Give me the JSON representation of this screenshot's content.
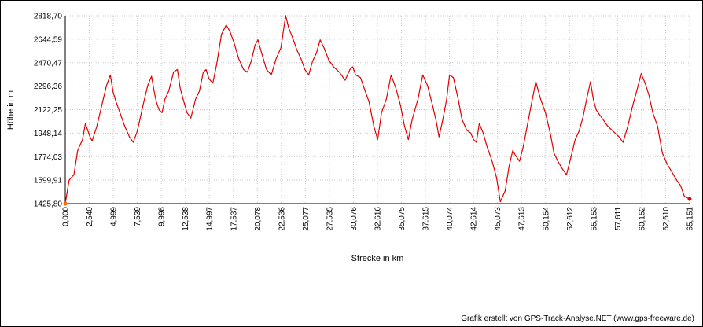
{
  "credit": "Grafik erstellt von GPS-Track-Analyse.NET (www.gps-freeware.de)",
  "colors": {
    "line": "#e00000",
    "grid": "#c8c8c8",
    "axis": "#000000",
    "start_marker": "#ff6600"
  },
  "chart_data": {
    "type": "line",
    "title": "",
    "xlabel": "Strecke  in  km",
    "ylabel": "Höhe  in  m",
    "xlim": [
      0,
      65.151
    ],
    "ylim": [
      1425.8,
      2818.7
    ],
    "grid": true,
    "x_ticks": [
      "0,000",
      "2,540",
      "4,999",
      "7,539",
      "9,998",
      "12,538",
      "14,997",
      "17,537",
      "20,078",
      "22,536",
      "25,077",
      "27,535",
      "30,076",
      "32,616",
      "35,075",
      "37,615",
      "40,074",
      "42,614",
      "45,073",
      "47,613",
      "50,154",
      "52,612",
      "55,153",
      "57,611",
      "60,152",
      "62,610",
      "65,151"
    ],
    "y_ticks": [
      "2818,70",
      "2644,59",
      "2470,47",
      "2296,36",
      "2122,25",
      "1948,14",
      "1774,03",
      "1599,91",
      "1425,80"
    ],
    "series": [
      {
        "name": "",
        "x": [
          0,
          0.4,
          0.9,
          1.3,
          1.8,
          2.1,
          2.5,
          2.8,
          3.3,
          3.8,
          4.3,
          4.7,
          5.0,
          5.3,
          5.7,
          6.2,
          6.7,
          7.1,
          7.5,
          7.7,
          8.1,
          8.6,
          9.0,
          9.3,
          9.5,
          9.8,
          10.1,
          10.4,
          10.8,
          11.3,
          11.7,
          12.0,
          12.3,
          12.7,
          13.1,
          13.6,
          14.0,
          14.4,
          14.7,
          15.0,
          15.4,
          15.8,
          16.3,
          16.8,
          17.2,
          17.6,
          18.1,
          18.6,
          19.0,
          19.4,
          19.8,
          20.1,
          20.5,
          21.0,
          21.5,
          22.0,
          22.5,
          23.0,
          23.3,
          23.7,
          24.2,
          24.6,
          25.0,
          25.4,
          25.8,
          26.2,
          26.6,
          27.0,
          27.5,
          28.0,
          28.6,
          29.2,
          29.7,
          30.0,
          30.3,
          30.8,
          31.2,
          31.7,
          32.2,
          32.6,
          33.0,
          33.5,
          34.0,
          34.5,
          35.0,
          35.4,
          35.8,
          36.2,
          36.8,
          37.3,
          37.8,
          38.3,
          38.7,
          39.0,
          39.4,
          39.8,
          40.1,
          40.5,
          41.0,
          41.4,
          41.9,
          42.3,
          42.6,
          42.9,
          43.2,
          43.6,
          44.0,
          44.5,
          45.0,
          45.4,
          45.9,
          46.3,
          46.7,
          47.0,
          47.4,
          47.8,
          48.2,
          48.6,
          49.1,
          49.6,
          50.1,
          50.6,
          51.0,
          51.4,
          51.9,
          52.3,
          52.8,
          53.2,
          53.6,
          54.0,
          54.4,
          54.8,
          55.1,
          55.4,
          56.0,
          56.6,
          57.2,
          57.8,
          58.2,
          58.7,
          59.2,
          59.7,
          60.1,
          60.5,
          60.9,
          61.3,
          61.8,
          62.3,
          62.8,
          63.3,
          63.8,
          64.2,
          64.6,
          65.151
        ],
        "y": [
          1426,
          1600,
          1640,
          1820,
          1900,
          2020,
          1935,
          1890,
          2000,
          2150,
          2300,
          2380,
          2250,
          2180,
          2100,
          2000,
          1920,
          1880,
          1960,
          2020,
          2150,
          2300,
          2370,
          2250,
          2180,
          2120,
          2100,
          2200,
          2260,
          2400,
          2420,
          2280,
          2200,
          2100,
          2060,
          2200,
          2260,
          2400,
          2420,
          2350,
          2320,
          2460,
          2680,
          2750,
          2700,
          2620,
          2500,
          2420,
          2400,
          2480,
          2600,
          2640,
          2540,
          2420,
          2380,
          2500,
          2580,
          2820,
          2730,
          2660,
          2560,
          2500,
          2420,
          2380,
          2480,
          2540,
          2640,
          2580,
          2490,
          2440,
          2400,
          2340,
          2420,
          2440,
          2380,
          2360,
          2280,
          2180,
          2000,
          1900,
          2100,
          2200,
          2380,
          2280,
          2150,
          2000,
          1900,
          2050,
          2200,
          2380,
          2300,
          2160,
          2040,
          1920,
          2050,
          2200,
          2380,
          2360,
          2200,
          2050,
          1970,
          1950,
          1900,
          1880,
          2020,
          1950,
          1850,
          1750,
          1620,
          1440,
          1520,
          1700,
          1820,
          1780,
          1740,
          1850,
          2000,
          2150,
          2330,
          2200,
          2100,
          1950,
          1800,
          1740,
          1680,
          1640,
          1780,
          1900,
          1960,
          2060,
          2200,
          2330,
          2200,
          2120,
          2060,
          2000,
          1960,
          1920,
          1880,
          2000,
          2150,
          2280,
          2390,
          2320,
          2230,
          2100,
          2000,
          1800,
          1720,
          1660,
          1600,
          1560,
          1480,
          1460
        ]
      }
    ]
  }
}
